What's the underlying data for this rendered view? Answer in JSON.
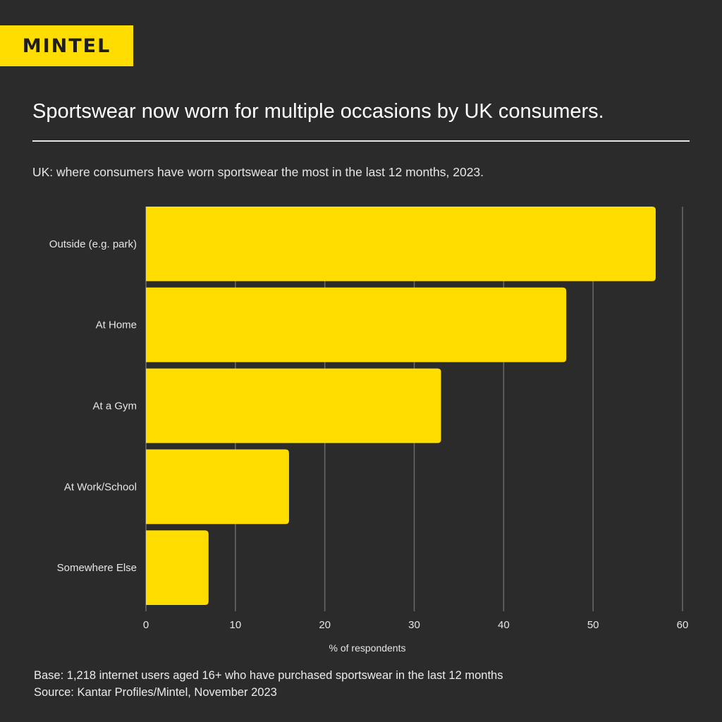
{
  "brand": {
    "logo_text": "MINTEL",
    "accent": "#ffdd00",
    "background": "#2b2b2b"
  },
  "title": "Sportswear now worn for multiple occasions by UK consumers.",
  "subtitle": "UK: where consumers have worn sportswear the most in the last 12 months, 2023.",
  "chart_data": {
    "type": "bar",
    "orientation": "horizontal",
    "categories": [
      "Outside (e.g. park)",
      "At Home",
      "At a Gym",
      "At Work/School",
      "Somewhere Else"
    ],
    "values": [
      57,
      47,
      33,
      16,
      7
    ],
    "xlabel": "% of respondents",
    "xlim": [
      0,
      60
    ],
    "xticks": [
      0,
      10,
      20,
      30,
      40,
      50,
      60
    ],
    "grid": true,
    "bar_color": "#ffdd00",
    "grid_color": "#6a6a6a"
  },
  "footer": {
    "base": "Base: 1,218 internet users aged 16+ who have purchased sportswear in the last 12 months",
    "source": "Source: Kantar Profiles/Mintel, November 2023"
  }
}
